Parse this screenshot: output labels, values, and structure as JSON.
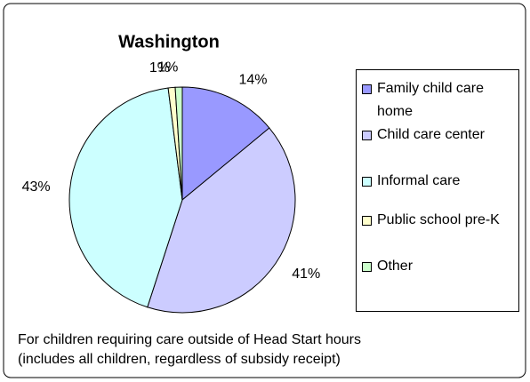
{
  "chart_data": {
    "type": "pie",
    "title": "Washington",
    "categories": [
      "Family child care home",
      "Child care center",
      "Informal care",
      "Public school pre-K",
      "Other"
    ],
    "values": [
      14,
      41,
      43,
      1,
      1
    ],
    "value_labels": [
      "14%",
      "41%",
      "43%",
      "1%",
      "1%"
    ],
    "colors": [
      "#9999ff",
      "#ccccff",
      "#ccffff",
      "#ffffcc",
      "#ccffcc"
    ],
    "legend": "right",
    "note": [
      "For children requiring care outside of Head Start hours",
      "(includes all children, regardless of subsidy receipt)"
    ]
  }
}
